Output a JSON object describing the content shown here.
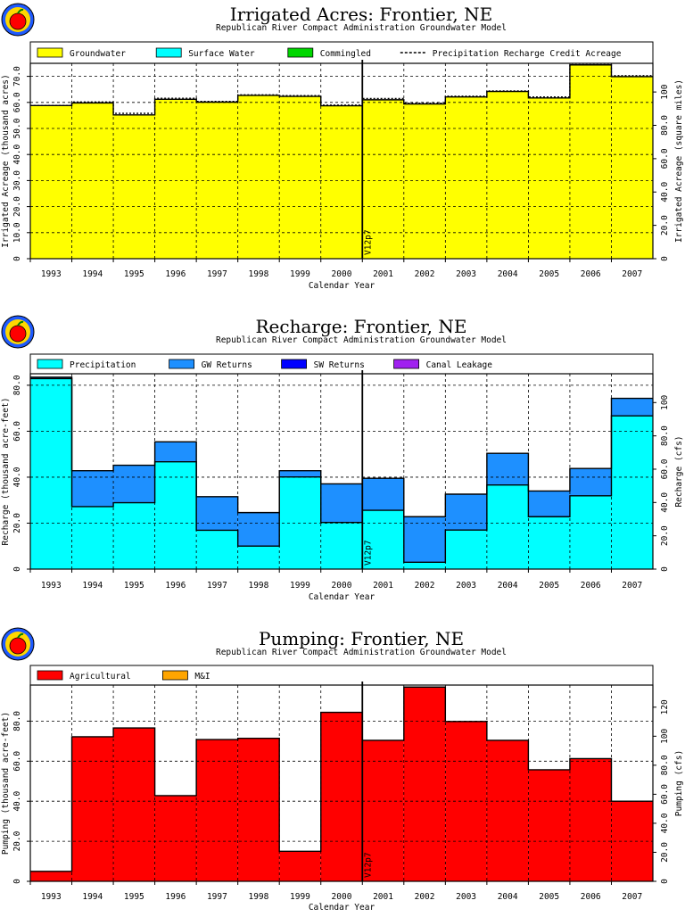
{
  "chart_data": [
    {
      "type": "bar",
      "title": "Irrigated Acres: Frontier, NE",
      "subtitle": "Republican River Compact Administration Groundwater Model",
      "xlabel": "Calendar Year",
      "ylabel": "Irrigated Acreage (thousand acres)",
      "y2label": "Irrigated Acreage (square miles)",
      "categories": [
        "1993",
        "1994",
        "1995",
        "1996",
        "1997",
        "1998",
        "1999",
        "2000",
        "2001",
        "2002",
        "2003",
        "2004",
        "2005",
        "2006",
        "2007"
      ],
      "ylim": [
        0,
        75
      ],
      "yticks": [
        0,
        10,
        20,
        30,
        40,
        50,
        60,
        70
      ],
      "ytick_labels": [
        "0",
        "10.0",
        "20.0",
        "30.0",
        "40.0",
        "50.0",
        "60.0",
        "70.0"
      ],
      "y2ticks": [
        0,
        20,
        40,
        60,
        80,
        100
      ],
      "y2tick_labels": [
        "0",
        "20.0",
        "40.0",
        "60.0",
        "80.0",
        "100"
      ],
      "y2_per_y": 1.5625,
      "grid": true,
      "legend_position": "top",
      "series": [
        {
          "name": "Groundwater",
          "color": "#ffff00",
          "values": [
            58.8,
            59.8,
            55.2,
            61.2,
            60.1,
            62.7,
            62.3,
            58.7,
            61.0,
            59.4,
            62.1,
            64.2,
            61.7,
            74.4,
            69.9
          ]
        },
        {
          "name": "Surface Water",
          "color": "#00ffff",
          "values": [
            0,
            0,
            0,
            0,
            0,
            0,
            0,
            0,
            0,
            0,
            0,
            0,
            0,
            0,
            0
          ]
        },
        {
          "name": "Commingled",
          "color": "#00d700",
          "values": [
            0,
            0,
            0,
            0,
            0,
            0,
            0,
            0,
            0,
            0,
            0,
            0,
            0,
            0,
            0
          ]
        }
      ],
      "line_series": {
        "name": "Precipitation Recharge Credit Acreage",
        "values": [
          58.8,
          60.2,
          55.8,
          61.6,
          60.4,
          62.9,
          62.6,
          59.0,
          61.5,
          59.7,
          62.4,
          64.4,
          62.1,
          74.5,
          70.3
        ]
      },
      "marker": {
        "label": "V12p7",
        "position": "2000|2001"
      }
    },
    {
      "type": "bar",
      "title": "Recharge: Frontier, NE",
      "subtitle": "Republican River Compact Administration Groundwater Model",
      "xlabel": "Calendar Year",
      "ylabel": "Recharge (thousand acre-feet)",
      "y2label": "Recharge (cfs)",
      "categories": [
        "1993",
        "1994",
        "1995",
        "1996",
        "1997",
        "1998",
        "1999",
        "2000",
        "2001",
        "2002",
        "2003",
        "2004",
        "2005",
        "2006",
        "2007"
      ],
      "ylim": [
        0,
        85
      ],
      "yticks": [
        0,
        20,
        40,
        60,
        80
      ],
      "ytick_labels": [
        "0",
        "20.0",
        "40.0",
        "60.0",
        "80.0"
      ],
      "y2ticks": [
        0,
        20,
        40,
        60,
        80,
        100
      ],
      "y2tick_labels": [
        "0",
        "20.0",
        "40.0",
        "60.0",
        "80.0",
        "100"
      ],
      "y2_per_y": 1.38,
      "grid": true,
      "legend_position": "top",
      "series": [
        {
          "name": "Precipitation",
          "color": "#00ffff",
          "values": [
            82.9,
            27.2,
            28.9,
            46.7,
            16.9,
            10.0,
            40.1,
            20.3,
            25.6,
            3.0,
            17.0,
            36.6,
            22.8,
            31.9,
            66.7
          ]
        },
        {
          "name": "GW Returns",
          "color": "#1e90ff",
          "values": [
            0.6,
            15.6,
            16.3,
            8.7,
            14.6,
            14.6,
            2.7,
            16.8,
            13.9,
            19.8,
            15.6,
            13.8,
            11.2,
            11.9,
            7.6
          ]
        },
        {
          "name": "SW Returns",
          "color": "#0000ff",
          "values": [
            0,
            0,
            0,
            0,
            0,
            0,
            0,
            0,
            0,
            0,
            0,
            0,
            0,
            0,
            0
          ]
        },
        {
          "name": "Canal Leakage",
          "color": "#a020f0",
          "values": [
            0,
            0,
            0,
            0,
            0,
            0,
            0,
            0,
            0,
            0,
            0,
            0,
            0,
            0,
            0
          ]
        }
      ],
      "marker": {
        "label": "V12p7",
        "position": "2000|2001"
      }
    },
    {
      "type": "bar",
      "title": "Pumping: Frontier, NE",
      "subtitle": "Republican River Compact Administration Groundwater Model",
      "xlabel": "Calendar Year",
      "ylabel": "Pumping (thousand acre-feet)",
      "y2label": "Pumping (cfs)",
      "categories": [
        "1993",
        "1994",
        "1995",
        "1996",
        "1997",
        "1998",
        "1999",
        "2000",
        "2001",
        "2002",
        "2003",
        "2004",
        "2005",
        "2006",
        "2007"
      ],
      "ylim": [
        0,
        98
      ],
      "yticks": [
        0,
        20,
        40,
        60,
        80
      ],
      "ytick_labels": [
        "0",
        "20.0",
        "40.0",
        "60.0",
        "80.0"
      ],
      "y2ticks": [
        0,
        20,
        40,
        60,
        80,
        100,
        120
      ],
      "y2tick_labels": [
        "0",
        "20.0",
        "40.0",
        "60.0",
        "80.0",
        "100",
        "120"
      ],
      "y2_per_y": 1.38,
      "grid": true,
      "legend_position": "top",
      "series": [
        {
          "name": "Agricultural",
          "color": "#ff0000",
          "values": [
            5.0,
            72.2,
            76.6,
            42.8,
            70.8,
            71.4,
            15.0,
            84.4,
            70.4,
            97.0,
            79.8,
            70.4,
            55.7,
            61.3,
            40.0
          ]
        },
        {
          "name": "M&I",
          "color": "#ffa500",
          "values": [
            0,
            0,
            0,
            0,
            0,
            0,
            0,
            0,
            0,
            0,
            0,
            0,
            0,
            0,
            0
          ]
        }
      ],
      "marker": {
        "label": "V12p7",
        "position": "2000|2001"
      }
    }
  ]
}
